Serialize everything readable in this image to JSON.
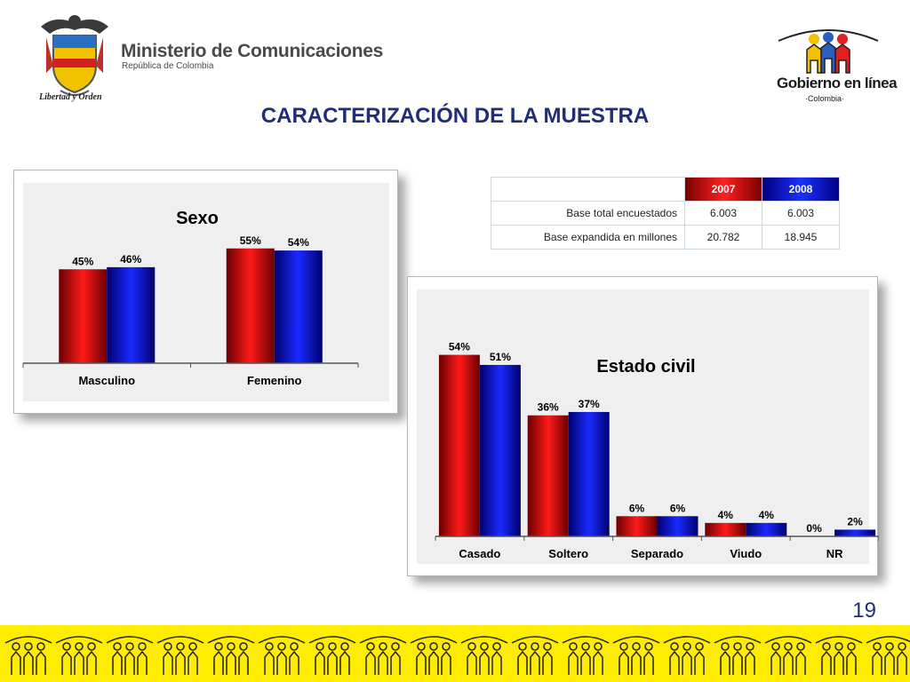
{
  "header": {
    "ministry_title": "Ministerio de Comunicaciones",
    "ministry_subtitle": "República de Colombia",
    "motto": "Libertad y Orden",
    "gel_title": "Gobierno en línea",
    "gel_subtitle": "·Colombia·"
  },
  "slide": {
    "title": "CARACTERIZACIÓN DE LA MUESTRA",
    "page_number": "19"
  },
  "colors": {
    "series_2007": "#e00000",
    "series_2008": "#0000e0",
    "title_blue": "#1f2d7a",
    "footer_yellow": "#ffed00"
  },
  "table": {
    "headers": [
      "",
      "2007",
      "2008"
    ],
    "rows": [
      {
        "label": "Base total encuestados",
        "v2007": "6.003",
        "v2008": "6.003"
      },
      {
        "label": "Base expandida en millones",
        "v2007": "20.782",
        "v2008": "18.945"
      }
    ]
  },
  "chart_data": [
    {
      "type": "bar",
      "title": "Sexo",
      "categories": [
        "Masculino",
        "Femenino"
      ],
      "series": [
        {
          "name": "2007",
          "values": [
            45,
            55
          ],
          "labels": [
            "45%",
            "55%"
          ]
        },
        {
          "name": "2008",
          "values": [
            46,
            54
          ],
          "labels": [
            "46%",
            "54%"
          ]
        }
      ],
      "ylim": [
        0,
        60
      ],
      "xlabel": "",
      "ylabel": ""
    },
    {
      "type": "bar",
      "title": "Estado civil",
      "categories": [
        "Casado",
        "Soltero",
        "Separado",
        "Viudo",
        "NR"
      ],
      "series": [
        {
          "name": "2007",
          "values": [
            54,
            36,
            6,
            4,
            0
          ],
          "labels": [
            "54%",
            "36%",
            "6%",
            "4%",
            "0%"
          ]
        },
        {
          "name": "2008",
          "values": [
            51,
            37,
            6,
            4,
            2
          ],
          "labels": [
            "51%",
            "37%",
            "6%",
            "4%",
            "2%"
          ]
        }
      ],
      "ylim": [
        0,
        56
      ],
      "xlabel": "",
      "ylabel": ""
    }
  ]
}
